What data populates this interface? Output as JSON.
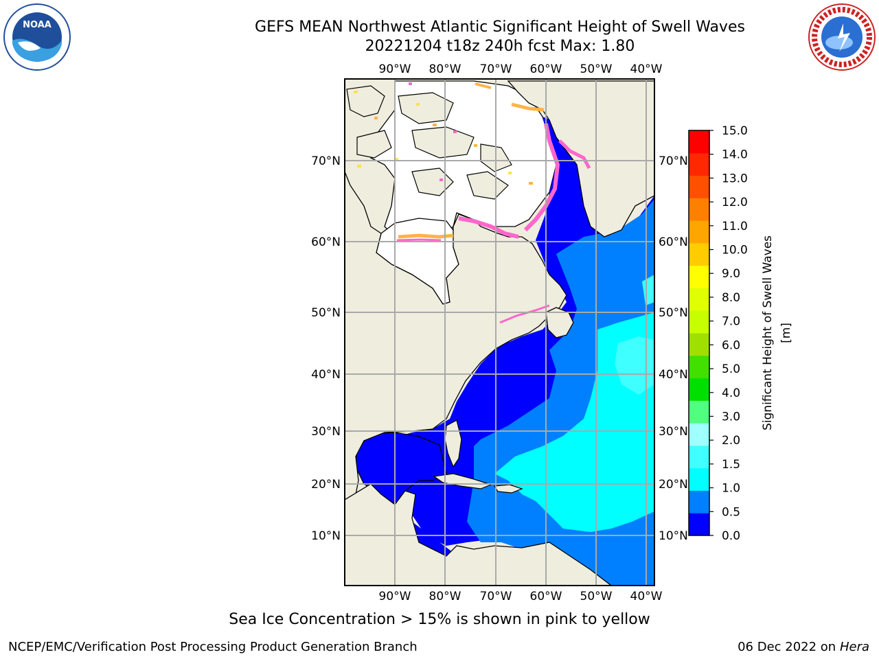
{
  "title": {
    "line1": "GEFS MEAN Northwest Atlantic Significant Height of Swell Waves",
    "line2": "20221204 t18z 240h fcst   Max: 1.80"
  },
  "logos": {
    "left": "NOAA",
    "right": "National Weather Service"
  },
  "map": {
    "lon_labels": [
      "90°W",
      "80°W",
      "70°W",
      "60°W",
      "50°W",
      "40°W"
    ],
    "lat_labels": [
      "70°N",
      "60°N",
      "50°N",
      "40°N",
      "30°N",
      "20°N",
      "10°N"
    ],
    "colors": {
      "land": "#efedde",
      "ice_free": "#ffffff",
      "grid": "#a9a9a9",
      "ice_pink": "#ff66cc",
      "ice_orange": "#ffb347",
      "ice_yellow": "#ffe14d"
    }
  },
  "colorbar": {
    "label": "Significant Height of Swell Waves [m]",
    "tick_labels": [
      "0.0",
      "0.5",
      "1.0",
      "1.5",
      "2.0",
      "3.0",
      "4.0",
      "5.0",
      "6.0",
      "7.0",
      "8.0",
      "9.0",
      "10.0",
      "11.0",
      "12.0",
      "13.0",
      "14.0",
      "15.0"
    ],
    "colors": [
      "#0000ff",
      "#0080ff",
      "#00ffff",
      "#40ffff",
      "#a0ffff",
      "#50ff80",
      "#00e000",
      "#40e000",
      "#a0e000",
      "#c8ff00",
      "#e0ff00",
      "#ffff00",
      "#ffcc00",
      "#ffa500",
      "#ff8000",
      "#ff5000",
      "#ff2800",
      "#ff0000"
    ]
  },
  "caption": "Sea Ice Concentration > 15% is shown in pink to yellow",
  "footer": {
    "left": "NCEP/EMC/Verification Post Processing Product Generation Branch",
    "right_date": "06 Dec 2022 on",
    "right_host": "Hera"
  }
}
